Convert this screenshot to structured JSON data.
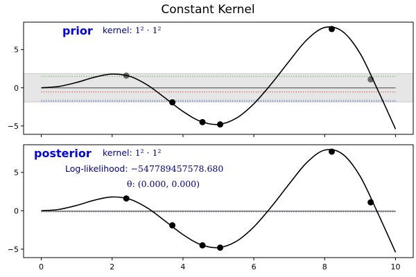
{
  "figure": {
    "title": "Constant Kernel"
  },
  "chart_data": [
    {
      "type": "line",
      "panel": "prior",
      "label": "prior",
      "kernel_prefix": "kernel: ",
      "kernel_formula": "1² · 1²",
      "xlim": [
        -0.5,
        10.5
      ],
      "ylim": [
        -6.1,
        8.6
      ],
      "xticks": [
        0,
        2,
        4,
        6,
        8,
        10
      ],
      "yticks": [
        -5,
        0,
        5
      ],
      "show_xtick_labels": false,
      "band": {
        "lower": -1.85,
        "upper": 1.85,
        "fill": "#e6e6e6",
        "edge": "#c8c8c8"
      },
      "mean": 0,
      "samples": [
        {
          "value": 1.5,
          "color": "#2ca02c"
        },
        {
          "value": -0.55,
          "color": "#d62728"
        },
        {
          "value": -1.65,
          "color": "#1f77b4"
        },
        {
          "value": -1.8,
          "color": "#9467bd"
        }
      ],
      "curve_points": [
        [
          0,
          0
        ],
        [
          0.5,
          0.18
        ],
        [
          1,
          0.7
        ],
        [
          1.5,
          1.38
        ],
        [
          2,
          1.8
        ],
        [
          2.5,
          1.5
        ],
        [
          3,
          0.35
        ],
        [
          3.5,
          -1.35
        ],
        [
          4,
          -3.1
        ],
        [
          4.5,
          -4.4
        ],
        [
          5,
          -4.8
        ],
        [
          5.5,
          -4.0
        ],
        [
          6,
          -2.1
        ],
        [
          6.5,
          0.55
        ],
        [
          7,
          3.5
        ],
        [
          7.5,
          6.3
        ],
        [
          8,
          7.9
        ],
        [
          8.5,
          7.4
        ],
        [
          9,
          4.5
        ],
        [
          9.5,
          -0.3
        ],
        [
          10,
          -5.4
        ]
      ],
      "observations": [
        [
          2.4,
          1.6
        ],
        [
          3.7,
          -1.9
        ],
        [
          4.55,
          -4.5
        ],
        [
          5.05,
          -4.8
        ],
        [
          8.2,
          7.7
        ],
        [
          9.3,
          1.1
        ]
      ]
    },
    {
      "type": "line",
      "panel": "posterior",
      "label": "posterior",
      "kernel_prefix": "kernel: ",
      "kernel_formula": "1² · 1²",
      "loglik_prefix": "Log-likelihood: ",
      "loglik_value": "−547789457578.680",
      "theta_text": "θ: (0.000, 0.000)",
      "xlim": [
        -0.5,
        10.5
      ],
      "ylim": [
        -6.1,
        8.6
      ],
      "xticks": [
        0,
        2,
        4,
        6,
        8,
        10
      ],
      "yticks": [
        -5,
        0,
        5
      ],
      "show_xtick_labels": true,
      "mean": -0.05,
      "samples": [
        {
          "value": -0.02,
          "color": "#2ca02c"
        },
        {
          "value": -0.08,
          "color": "#d62728"
        },
        {
          "value": -0.12,
          "color": "#1f77b4"
        },
        {
          "value": -0.15,
          "color": "#9467bd"
        }
      ],
      "curve_points": [
        [
          0,
          0
        ],
        [
          0.5,
          0.18
        ],
        [
          1,
          0.7
        ],
        [
          1.5,
          1.38
        ],
        [
          2,
          1.8
        ],
        [
          2.5,
          1.5
        ],
        [
          3,
          0.35
        ],
        [
          3.5,
          -1.35
        ],
        [
          4,
          -3.1
        ],
        [
          4.5,
          -4.4
        ],
        [
          5,
          -4.8
        ],
        [
          5.5,
          -4.0
        ],
        [
          6,
          -2.1
        ],
        [
          6.5,
          0.55
        ],
        [
          7,
          3.5
        ],
        [
          7.5,
          6.3
        ],
        [
          8,
          7.9
        ],
        [
          8.5,
          7.4
        ],
        [
          9,
          4.5
        ],
        [
          9.5,
          -0.3
        ],
        [
          10,
          -5.4
        ]
      ],
      "observations": [
        [
          2.4,
          1.6
        ],
        [
          3.7,
          -1.9
        ],
        [
          4.55,
          -4.5
        ],
        [
          5.05,
          -4.8
        ],
        [
          8.2,
          7.7
        ],
        [
          9.3,
          1.1
        ]
      ]
    }
  ]
}
